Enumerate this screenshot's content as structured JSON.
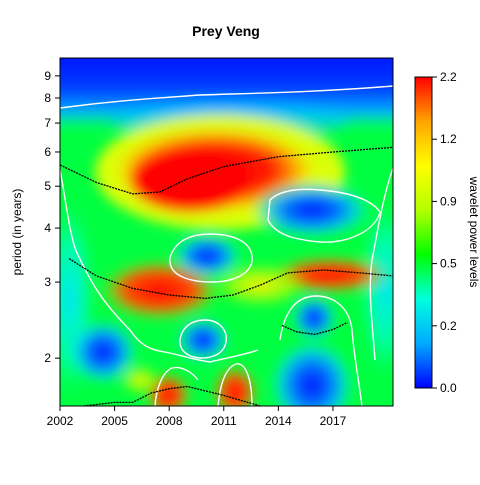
{
  "chart_data": {
    "type": "heatmap",
    "title": "Prey Veng",
    "xlabel": "",
    "ylabel": "period (in years)",
    "colorbar_label": "wavelet power levels",
    "x_tick_labels": [
      "2002",
      "2005",
      "2008",
      "2011",
      "2014",
      "2017"
    ],
    "x_ticks": [
      2002,
      2005,
      2008,
      2011,
      2014,
      2017
    ],
    "xlim": [
      2002,
      2020.3
    ],
    "y_scale": "log2",
    "y_tick_labels": [
      "2",
      "3",
      "4",
      "5",
      "6",
      "7",
      "8",
      "9"
    ],
    "y_ticks": [
      2,
      3,
      4,
      5,
      6,
      7,
      8,
      9
    ],
    "ylim": [
      1.55,
      9.9
    ],
    "colorbar_tick_labels": [
      "0.0",
      "0.2",
      "0.5",
      "0.9",
      "1.2",
      "2.2"
    ],
    "colorbar_palette": [
      "#0000ff",
      "#00aaff",
      "#00ffdd",
      "#00ff00",
      "#b4ff00",
      "#ffff00",
      "#ffa500",
      "#ff0000"
    ],
    "ridges": [
      {
        "name": "",
        "points": [
          [
            2002,
            5.6
          ],
          [
            2004,
            5.1
          ],
          [
            2006,
            4.8
          ],
          [
            2007.5,
            4.85
          ],
          [
            2009,
            5.2
          ],
          [
            2011,
            5.55
          ],
          [
            2014,
            5.85
          ],
          [
            2017,
            6.0
          ],
          [
            2020.3,
            6.15
          ]
        ]
      },
      {
        "name": "",
        "points": [
          [
            2002.5,
            3.4
          ],
          [
            2004,
            3.1
          ],
          [
            2006,
            2.9
          ],
          [
            2008,
            2.8
          ],
          [
            2010,
            2.75
          ],
          [
            2011.5,
            2.8
          ],
          [
            2013,
            2.95
          ],
          [
            2014.5,
            3.15
          ],
          [
            2016.5,
            3.2
          ],
          [
            2018.5,
            3.15
          ],
          [
            2020.3,
            3.1
          ]
        ]
      },
      {
        "name": "",
        "points": [
          [
            2003.3,
            1.55
          ],
          [
            2005,
            1.58
          ],
          [
            2006,
            1.58
          ],
          [
            2007,
            1.66
          ],
          [
            2008,
            1.7
          ],
          [
            2009,
            1.72
          ],
          [
            2011,
            1.64
          ],
          [
            2013,
            1.55
          ]
        ]
      },
      {
        "name": "",
        "points": [
          [
            2014.2,
            2.38
          ],
          [
            2015,
            2.3
          ],
          [
            2016,
            2.27
          ],
          [
            2017,
            2.33
          ],
          [
            2017.8,
            2.42
          ]
        ]
      }
    ]
  }
}
